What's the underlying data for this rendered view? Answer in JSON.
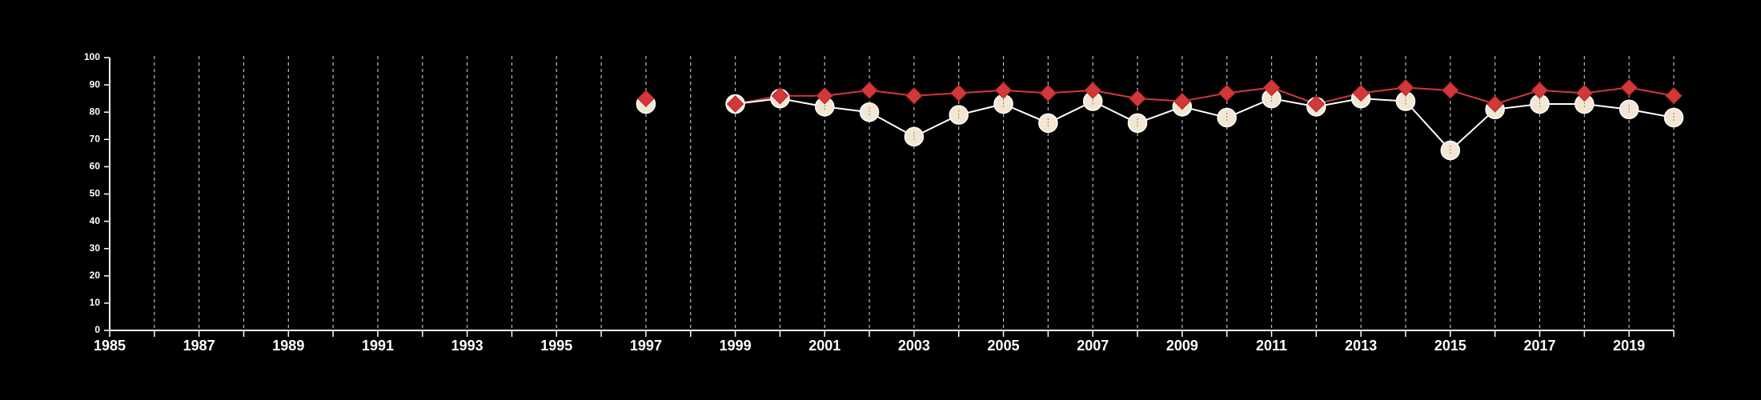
{
  "chart_data": {
    "type": "line",
    "title": "",
    "xlabel": "",
    "ylabel": "",
    "xlim": [
      1985,
      2020
    ],
    "ylim": [
      0,
      100
    ],
    "grid": {
      "vertical_dashed": true,
      "horizontal": false
    },
    "x_ticks_labeled": [
      1985,
      1987,
      1989,
      1991,
      1993,
      1995,
      1997,
      1999,
      2001,
      2003,
      2005,
      2007,
      2009,
      2011,
      2013,
      2015,
      2017,
      2019
    ],
    "y_ticks": [
      0,
      10,
      20,
      30,
      40,
      50,
      60,
      70,
      80,
      90,
      100
    ],
    "series": [
      {
        "marker": "diamond",
        "color": "#d2383a",
        "x": [
          1997,
          1999,
          2000,
          2001,
          2002,
          2003,
          2004,
          2005,
          2006,
          2007,
          2008,
          2009,
          2010,
          2011,
          2012,
          2013,
          2014,
          2015,
          2016,
          2017,
          2018,
          2019,
          2020
        ],
        "values": [
          85,
          83,
          86,
          86,
          88,
          86,
          87,
          88,
          87,
          88,
          85,
          84,
          87,
          89,
          83,
          87,
          89,
          88,
          83,
          88,
          87,
          89,
          86
        ]
      },
      {
        "marker": "circle",
        "color": "#f3e7d3",
        "x": [
          1997,
          1999,
          2000,
          2001,
          2002,
          2003,
          2004,
          2005,
          2006,
          2007,
          2008,
          2009,
          2010,
          2011,
          2012,
          2013,
          2014,
          2015,
          2016,
          2017,
          2018,
          2019,
          2020
        ],
        "values": [
          83,
          83,
          85,
          82,
          80,
          71,
          79,
          83,
          76,
          84,
          76,
          82,
          78,
          85,
          82,
          85,
          84,
          66,
          81,
          83,
          83,
          81,
          78
        ]
      }
    ]
  },
  "colors": {
    "background": "#000000",
    "axis": "#ffffff",
    "grid": "#bbbbbb",
    "line_series_2": "#ffffff"
  }
}
